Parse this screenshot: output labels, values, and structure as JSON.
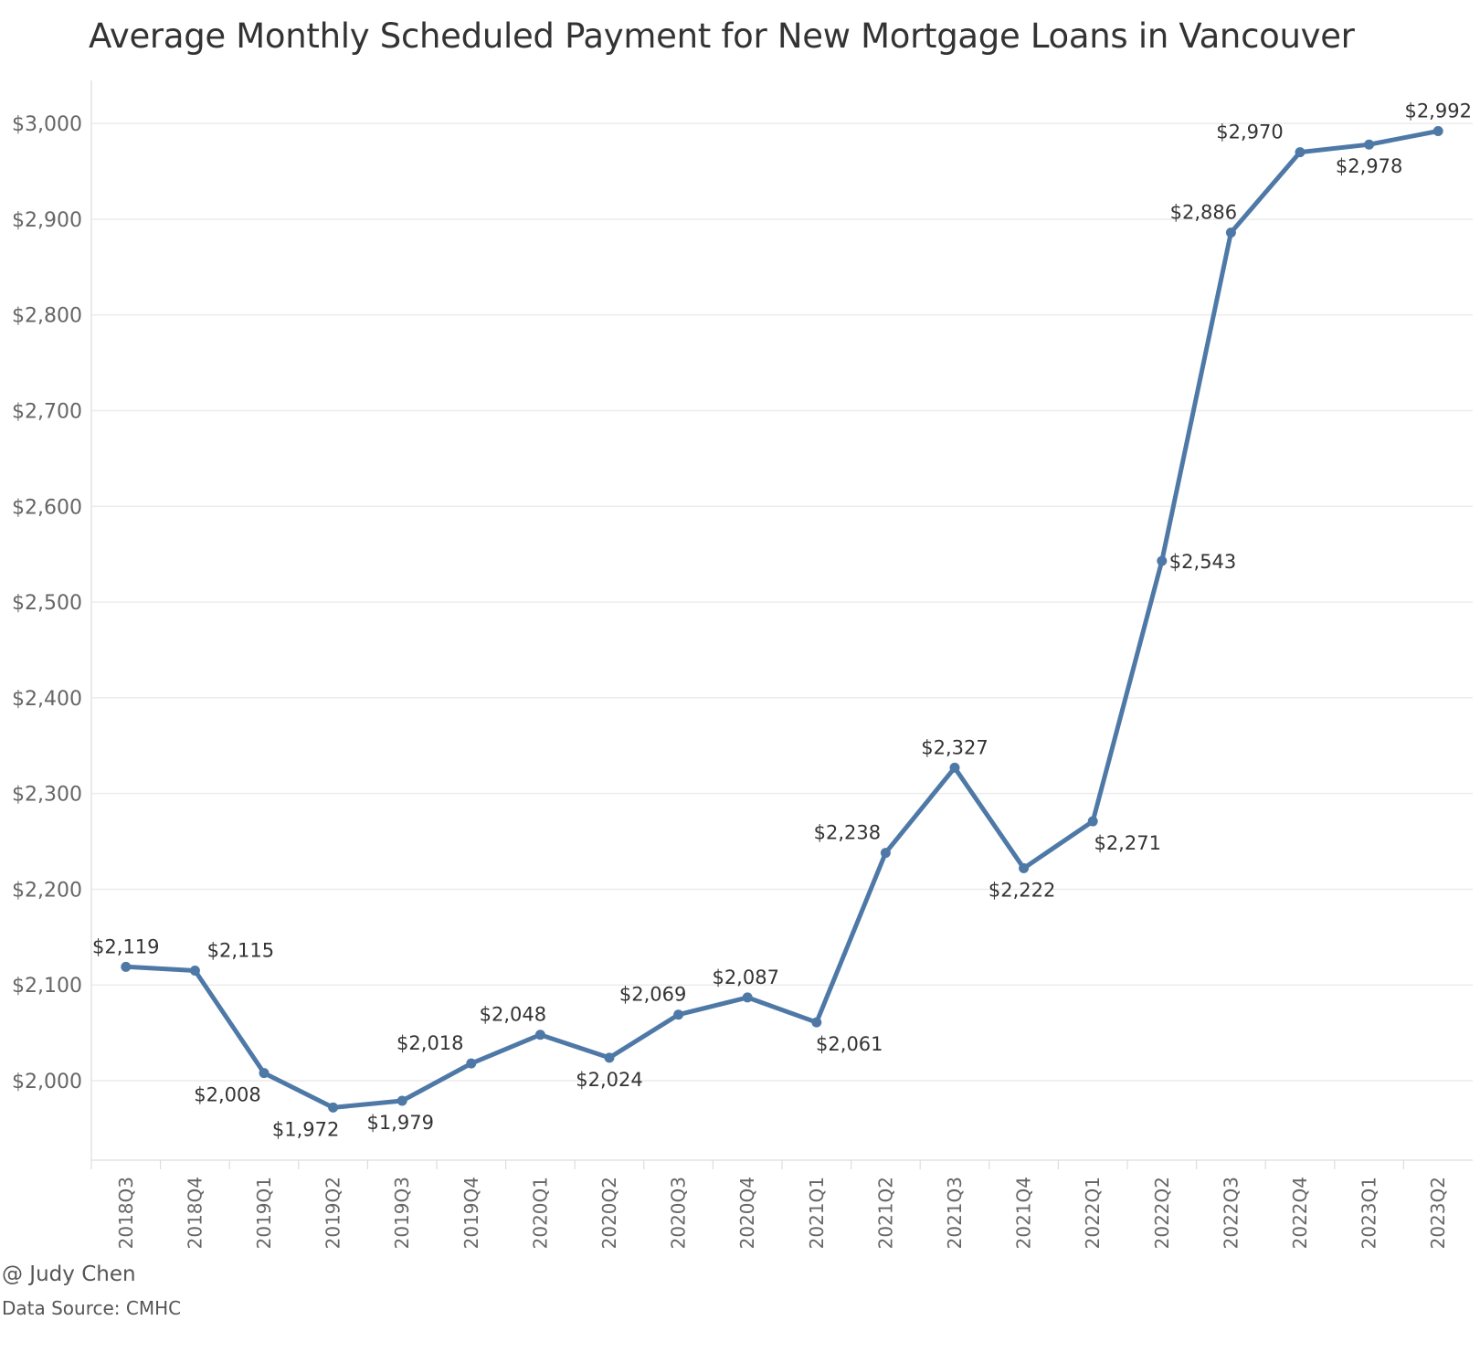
{
  "title": "Average Monthly Scheduled Payment for New Mortgage Loans in Vancouver",
  "footer": {
    "author": "@ Judy Chen",
    "source": "Data Source: CMHC"
  },
  "colors": {
    "line": "#4e79a7",
    "grid": "#ececec",
    "axis_text": "#666666",
    "label_text": "#333333"
  },
  "chart_data": {
    "type": "line",
    "title": "Average Monthly Scheduled Payment for New Mortgage Loans in Vancouver",
    "xlabel": "",
    "ylabel": "",
    "categories": [
      "2018Q3",
      "2018Q4",
      "2019Q1",
      "2019Q2",
      "2019Q3",
      "2019Q4",
      "2020Q1",
      "2020Q2",
      "2020Q3",
      "2020Q4",
      "2021Q1",
      "2021Q2",
      "2021Q3",
      "2021Q4",
      "2022Q1",
      "2022Q2",
      "2022Q3",
      "2022Q4",
      "2023Q1",
      "2023Q2"
    ],
    "series": [
      {
        "values": [
          2119,
          2115,
          2008,
          1972,
          1979,
          2018,
          2048,
          2024,
          2069,
          2087,
          2061,
          2238,
          2327,
          2222,
          2271,
          2543,
          2886,
          2970,
          2978,
          2992
        ],
        "labels": [
          "$2,119",
          "$2,115",
          "$2,008",
          "$1,972",
          "$1,979",
          "$2,018",
          "$2,048",
          "$2,024",
          "$2,069",
          "$2,087",
          "$2,061",
          "$2,238",
          "$2,327",
          "$2,222",
          "$2,271",
          "$2,543",
          "$2,886",
          "$2,970",
          "$2,978",
          "$2,992"
        ]
      }
    ],
    "y_ticks": [
      2000,
      2100,
      2200,
      2300,
      2400,
      2500,
      2600,
      2700,
      2800,
      2900,
      3000
    ],
    "y_tick_labels": [
      "$2,000",
      "$2,100",
      "$2,200",
      "$2,300",
      "$2,400",
      "$2,500",
      "$2,600",
      "$2,700",
      "$2,800",
      "$2,900",
      "$3,000"
    ],
    "ylim": [
      1917,
      3045
    ],
    "grid": true,
    "legend": "none"
  }
}
